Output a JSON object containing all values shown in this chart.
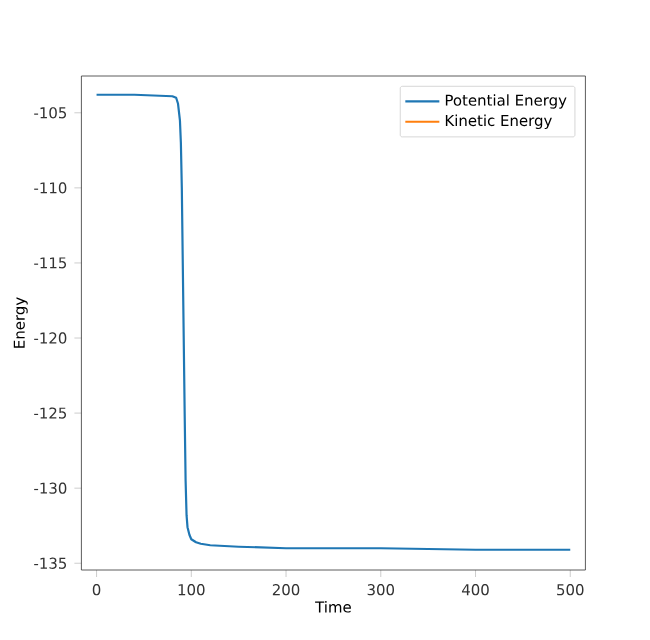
{
  "chart_data": {
    "type": "line",
    "xlabel": "Time",
    "ylabel": "Energy",
    "xlim": [
      -16,
      516
    ],
    "ylim": [
      -135.45,
      -102.55
    ],
    "xticks": [
      0,
      100,
      200,
      300,
      400,
      500
    ],
    "yticks": [
      -105,
      -110,
      -115,
      -120,
      -125,
      -130,
      -135
    ],
    "legend": "top right",
    "grid": false,
    "series": [
      {
        "name": "Potential Energy",
        "color": "#1f77b4",
        "x": [
          0,
          40,
          80,
          84,
          86,
          88,
          89,
          90,
          91,
          92,
          93,
          94,
          95,
          96,
          98,
          100,
          105,
          110,
          120,
          150,
          200,
          250,
          300,
          400,
          500
        ],
        "values": [
          -103.8,
          -103.8,
          -103.9,
          -104.0,
          -104.4,
          -105.5,
          -107,
          -110,
          -115,
          -120,
          -125,
          -129.5,
          -131.8,
          -132.6,
          -133.1,
          -133.4,
          -133.6,
          -133.7,
          -133.8,
          -133.9,
          -134.0,
          -134.0,
          -134.0,
          -134.1,
          -134.1
        ]
      },
      {
        "name": "Kinetic Energy",
        "color": "#ff7f0e"
      }
    ]
  }
}
